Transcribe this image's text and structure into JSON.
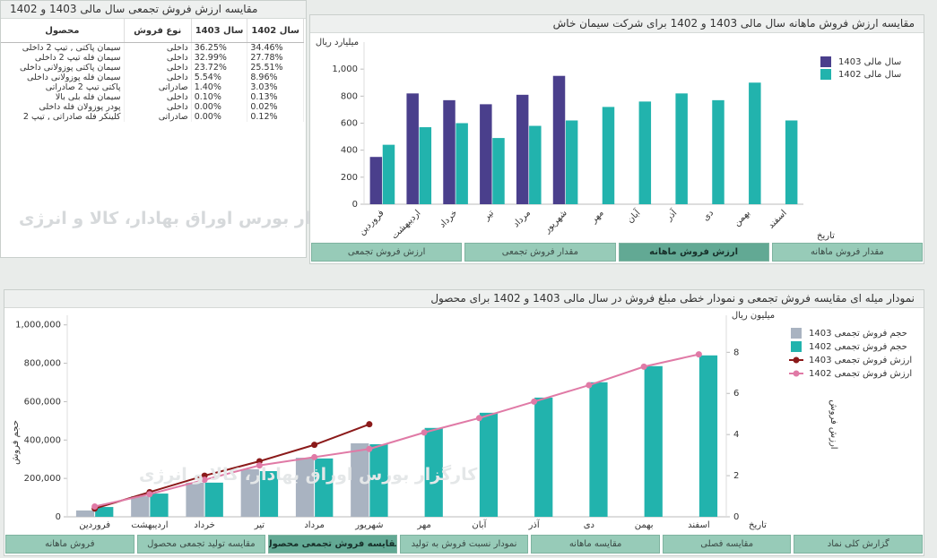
{
  "table_panel": {
    "title": "مقایسه ارزش فروش تجمعی سال مالی 1403 و 1402",
    "columns": [
      "محصول",
      "نوع فروش",
      "سال 1403",
      "سال 1402"
    ],
    "rows": [
      [
        "سیمان پاکتی , تیپ 2 داخلی",
        "داخلی",
        "36.25%",
        "34.46%"
      ],
      [
        "سیمان فله تیپ 2 داخلی",
        "داخلی",
        "32.99%",
        "27.78%"
      ],
      [
        "سیمان پاکتی پوزولانی داخلی",
        "داخلی",
        "23.72%",
        "25.51%"
      ],
      [
        "سیمان فله پوزولانی داخلی",
        "داخلی",
        "5.54%",
        "8.96%"
      ],
      [
        "پاکتی تیپ 2 صادراتی",
        "صادراتی",
        "1.40%",
        "3.03%"
      ],
      [
        "سیمان فله بلی بالا",
        "داخلی",
        "0.10%",
        "0.13%"
      ],
      [
        "پودر پوزولان فله داخلی",
        "داخلی",
        "0.00%",
        "0.02%"
      ],
      [
        "کلینکر فله صادراتی , تیپ 2",
        "صادراتی",
        "0.00%",
        "0.12%"
      ]
    ]
  },
  "watermark": "کارگزار بورس اوراق بهادار، کالا و انرژی",
  "tabs_top": {
    "items": [
      "ارزش فروش تجمعی",
      "مقدار فروش تجمعی",
      "ارزش فروش ماهانه",
      "مقدار فروش ماهانه"
    ],
    "active": 2
  },
  "tabs_bottom": {
    "items": [
      "فروش ماهانه",
      "مقایسه تولید تجمعی محصول",
      "مقایسه فروش تجمعی محصول",
      "نمودار نسبت فروش به تولید",
      "مقایسه ماهانه",
      "مقایسه فصلی",
      "گزارش کلی نماد"
    ],
    "active": 2
  },
  "chart_data": [
    {
      "type": "bar",
      "title": "مقایسه ارزش فروش ماهانه سال مالی 1403 و 1402 برای شرکت سیمان خاش",
      "y_label": "میلیارد ریال",
      "x_label": "تاریخ",
      "categories": [
        "فروردین",
        "اردیبهشت",
        "خرداد",
        "تیر",
        "مرداد",
        "شهریور",
        "مهر",
        "آبان",
        "آذر",
        "دی",
        "بهمن",
        "اسفند"
      ],
      "series": [
        {
          "name": "سال مالی 1403",
          "color": "#4a3f8c",
          "values": [
            350,
            820,
            770,
            740,
            810,
            950,
            null,
            null,
            null,
            null,
            null,
            null
          ]
        },
        {
          "name": "سال مالی 1402",
          "color": "#22b3ad",
          "values": [
            440,
            570,
            600,
            490,
            580,
            620,
            720,
            760,
            820,
            770,
            900,
            620
          ]
        }
      ],
      "ylim": [
        0,
        1200
      ],
      "yticks": [
        0,
        200,
        400,
        600,
        800,
        {
          "value": 1000,
          "label": "1,000"
        }
      ],
      "grid": false,
      "legend": "top-right"
    },
    {
      "type": "bar-line",
      "title": "نمودار میله ای مقایسه فروش تجمعی و نمودار خطی مبلغ فروش در سال مالی 1403 و 1402 برای محصول",
      "y_label": "حجم فروش",
      "y2_unit": "میلیون ریال",
      "y2_label": "ارزش فروش",
      "x_label": "تاریخ",
      "categories": [
        "فروردین",
        "اردیبهشت",
        "خرداد",
        "تیر",
        "مرداد",
        "شهریور",
        "مهر",
        "آبان",
        "آذر",
        "دی",
        "بهمن",
        "اسفند"
      ],
      "series": [
        {
          "name": "حجم فروش تجمعی 1403",
          "type": "bar",
          "color": "#a9b3c1",
          "values": [
            33000,
            107000,
            178000,
            248000,
            308000,
            383000,
            null,
            null,
            null,
            null,
            null,
            null
          ]
        },
        {
          "name": "حجم فروش تجمعی 1402",
          "type": "bar",
          "color": "#22b3ad",
          "values": [
            51000,
            121000,
            178000,
            238000,
            304000,
            378000,
            463000,
            542000,
            621000,
            701000,
            785000,
            841000
          ]
        },
        {
          "name": "ارزش فروش تجمعی 1403",
          "type": "line",
          "axis": "y2",
          "color": "#8b1a1a",
          "values": [
            0.4,
            1.2,
            2.0,
            2.7,
            3.5,
            4.5,
            null,
            null,
            null,
            null,
            null,
            null
          ]
        },
        {
          "name": "ارزش فروش تجمعی 1402",
          "type": "line",
          "axis": "y2",
          "color": "#e07aa6",
          "values": [
            0.5,
            1.1,
            1.8,
            2.5,
            2.9,
            3.3,
            4.1,
            4.8,
            5.6,
            6.4,
            7.3,
            7.9
          ]
        }
      ],
      "ylim": [
        0,
        1050000
      ],
      "yticks": [
        0,
        {
          "value": 200000,
          "label": "200,000"
        },
        {
          "value": 400000,
          "label": "400,000"
        },
        {
          "value": 600000,
          "label": "600,000"
        },
        {
          "value": 800000,
          "label": "800,000"
        },
        {
          "value": 1000000,
          "label": "1,000,000"
        }
      ],
      "y2lim": [
        0,
        9.8
      ],
      "y2ticks": [
        0,
        2,
        4,
        6,
        8
      ],
      "grid": false,
      "legend": "top-right"
    }
  ]
}
